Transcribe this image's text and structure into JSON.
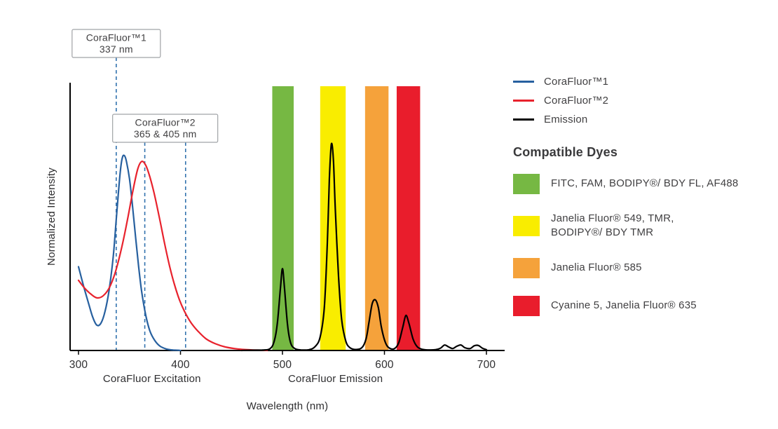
{
  "chart_data": {
    "type": "line",
    "xlabel": "Wavelength (nm)",
    "ylabel": "Normalized Intensity",
    "xlim": [
      300,
      710
    ],
    "ylim": [
      0,
      1.1
    ],
    "x_ticks": [
      300,
      400,
      500,
      600,
      700
    ],
    "grid": false,
    "marker_line_color": "#3272AE",
    "axis_section_labels": [
      {
        "text": "CoraFluor Excitation",
        "center_nm": 372
      },
      {
        "text": "CoraFluor Emission",
        "center_nm": 552
      }
    ],
    "emission_filter_bands": [
      {
        "name": "green",
        "color": "#76B843",
        "range_nm": [
          490,
          511
        ]
      },
      {
        "name": "yellow",
        "color": "#F9ED00",
        "range_nm": [
          537,
          562
        ]
      },
      {
        "name": "orange",
        "color": "#F5A23B",
        "range_nm": [
          581,
          604
        ]
      },
      {
        "name": "red",
        "color": "#E91D2C",
        "range_nm": [
          612,
          635
        ]
      }
    ],
    "callouts": [
      {
        "title": "CoraFluor™1",
        "subtitle": "337 nm",
        "marker_lines_nm": [
          337
        ],
        "box_center_nm": 337
      },
      {
        "title": "CoraFluor™2",
        "subtitle": "365 & 405 nm",
        "marker_lines_nm": [
          365,
          405
        ],
        "box_center_nm": 385
      }
    ],
    "series": [
      {
        "name": "CoraFluor™1 excitation",
        "color": "#27609F",
        "points": [
          [
            300,
            0.43
          ],
          [
            305,
            0.33
          ],
          [
            310,
            0.24
          ],
          [
            314,
            0.17
          ],
          [
            318,
            0.13
          ],
          [
            322,
            0.14
          ],
          [
            326,
            0.2
          ],
          [
            330,
            0.31
          ],
          [
            334,
            0.48
          ],
          [
            337,
            0.67
          ],
          [
            339,
            0.8
          ],
          [
            341,
            0.92
          ],
          [
            343,
            0.99
          ],
          [
            345,
            1.0
          ],
          [
            347,
            0.97
          ],
          [
            350,
            0.88
          ],
          [
            353,
            0.74
          ],
          [
            356,
            0.58
          ],
          [
            359,
            0.43
          ],
          [
            362,
            0.3
          ],
          [
            366,
            0.18
          ],
          [
            370,
            0.1
          ],
          [
            375,
            0.05
          ],
          [
            380,
            0.022
          ],
          [
            386,
            0.008
          ],
          [
            393,
            0.002
          ],
          [
            400,
            0
          ]
        ]
      },
      {
        "name": "CoraFluor™2 excitation",
        "color": "#E8222D",
        "points": [
          [
            300,
            0.36
          ],
          [
            306,
            0.32
          ],
          [
            312,
            0.29
          ],
          [
            318,
            0.27
          ],
          [
            324,
            0.28
          ],
          [
            330,
            0.32
          ],
          [
            336,
            0.4
          ],
          [
            342,
            0.52
          ],
          [
            348,
            0.67
          ],
          [
            353,
            0.81
          ],
          [
            358,
            0.93
          ],
          [
            362,
            0.97
          ],
          [
            366,
            0.95
          ],
          [
            370,
            0.89
          ],
          [
            374,
            0.81
          ],
          [
            379,
            0.69
          ],
          [
            384,
            0.56
          ],
          [
            389,
            0.44
          ],
          [
            394,
            0.34
          ],
          [
            399,
            0.26
          ],
          [
            404,
            0.2
          ],
          [
            410,
            0.145
          ],
          [
            417,
            0.1
          ],
          [
            425,
            0.06
          ],
          [
            434,
            0.035
          ],
          [
            444,
            0.018
          ],
          [
            456,
            0.008
          ],
          [
            470,
            0.003
          ],
          [
            485,
            0
          ]
        ]
      },
      {
        "name": "Emission",
        "color": "#000000",
        "points": [
          [
            460,
            0
          ],
          [
            480,
            0.002
          ],
          [
            488,
            0.01
          ],
          [
            492,
            0.05
          ],
          [
            495,
            0.14
          ],
          [
            498,
            0.32
          ],
          [
            500,
            0.42
          ],
          [
            502,
            0.32
          ],
          [
            505,
            0.13
          ],
          [
            508,
            0.04
          ],
          [
            512,
            0.01
          ],
          [
            518,
            0.003
          ],
          [
            526,
            0.004
          ],
          [
            532,
            0.02
          ],
          [
            537,
            0.07
          ],
          [
            541,
            0.22
          ],
          [
            544,
            0.55
          ],
          [
            546,
            0.88
          ],
          [
            548,
            1.06
          ],
          [
            550,
            0.97
          ],
          [
            552,
            0.7
          ],
          [
            555,
            0.38
          ],
          [
            558,
            0.16
          ],
          [
            562,
            0.05
          ],
          [
            566,
            0.015
          ],
          [
            572,
            0.005
          ],
          [
            578,
            0.015
          ],
          [
            582,
            0.06
          ],
          [
            585,
            0.15
          ],
          [
            588,
            0.24
          ],
          [
            591,
            0.26
          ],
          [
            594,
            0.22
          ],
          [
            597,
            0.12
          ],
          [
            601,
            0.04
          ],
          [
            605,
            0.012
          ],
          [
            610,
            0.01
          ],
          [
            614,
            0.04
          ],
          [
            618,
            0.12
          ],
          [
            621,
            0.18
          ],
          [
            624,
            0.14
          ],
          [
            628,
            0.06
          ],
          [
            632,
            0.02
          ],
          [
            637,
            0.006
          ],
          [
            643,
            0.003
          ],
          [
            650,
            0.004
          ],
          [
            655,
            0.012
          ],
          [
            659,
            0.028
          ],
          [
            663,
            0.018
          ],
          [
            667,
            0.01
          ],
          [
            671,
            0.022
          ],
          [
            675,
            0.028
          ],
          [
            679,
            0.014
          ],
          [
            684,
            0.01
          ],
          [
            688,
            0.024
          ],
          [
            692,
            0.026
          ],
          [
            696,
            0.012
          ],
          [
            700,
            0.004
          ]
        ]
      }
    ]
  },
  "legend": {
    "series": [
      {
        "label": "CoraFluor™1",
        "color": "#27609F"
      },
      {
        "label": "CoraFluor™2",
        "color": "#E8222D"
      },
      {
        "label": "Emission",
        "color": "#000000"
      }
    ],
    "compatible_dyes_heading": "Compatible Dyes",
    "compatible_dyes": [
      {
        "swatch_color": "#76B843",
        "label": "FITC, FAM, BODIPY®/ BDY FL, AF488"
      },
      {
        "swatch_color": "#F9ED00",
        "label": "Janelia Fluor® 549, TMR,\nBODIPY®/ BDY TMR"
      },
      {
        "swatch_color": "#F5A23B",
        "label": "Janelia Fluor® 585"
      },
      {
        "swatch_color": "#E91D2C",
        "label": "Cyanine 5, Janelia Fluor® 635"
      }
    ]
  }
}
